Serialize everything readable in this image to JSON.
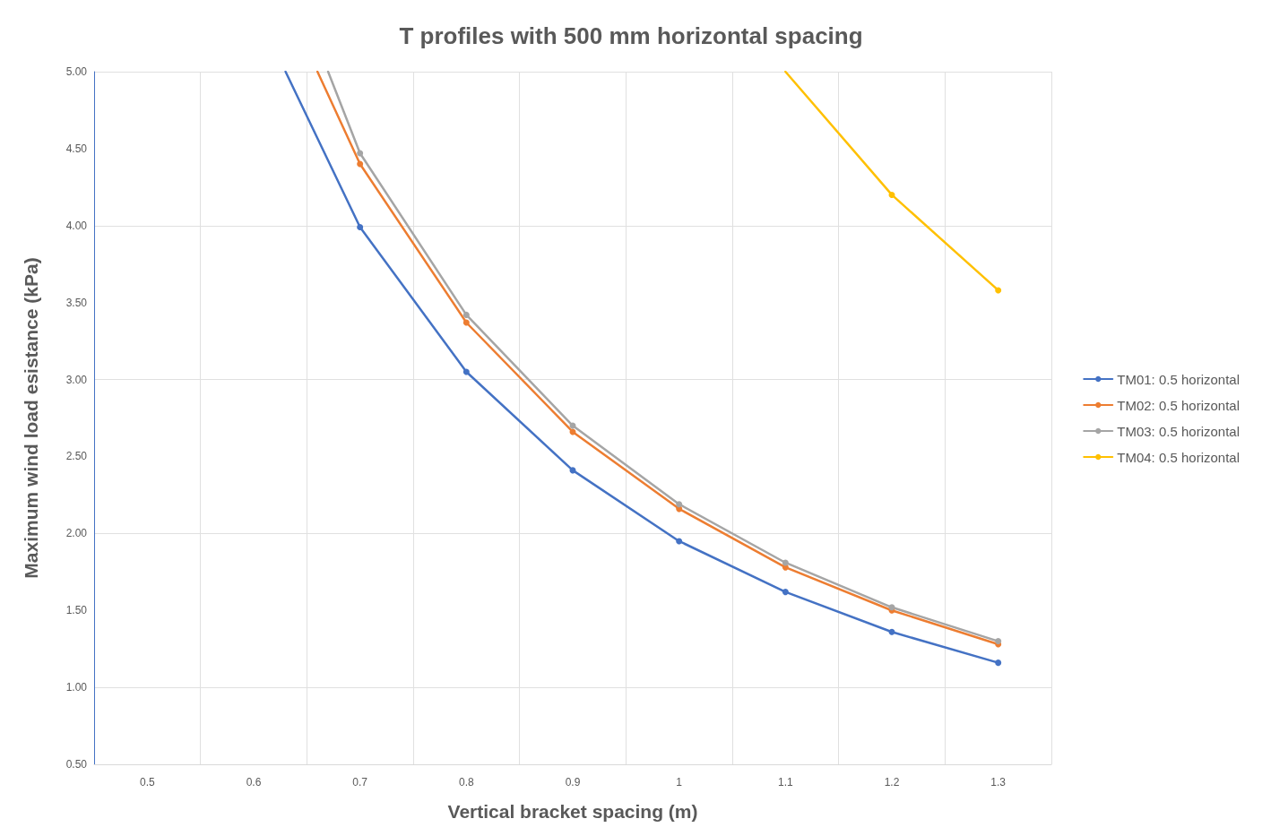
{
  "chart_data": {
    "type": "line",
    "title": "T profiles with 500 mm horizontal spacing",
    "xlabel": "Vertical bracket spacing (m)",
    "ylabel": "Maximum wind load esistance (kPa)",
    "xlim": [
      0.45,
      1.35
    ],
    "xticks": [
      {
        "value": 0.45,
        "label": null
      },
      {
        "value": 0.5,
        "label": "0.5"
      },
      {
        "value": 0.55,
        "label": null
      },
      {
        "value": 0.6,
        "label": "0.6"
      },
      {
        "value": 0.65,
        "label": null
      },
      {
        "value": 0.7,
        "label": "0.7"
      },
      {
        "value": 0.75,
        "label": null
      },
      {
        "value": 0.8,
        "label": "0.8"
      },
      {
        "value": 0.85,
        "label": null
      },
      {
        "value": 0.9,
        "label": "0.9"
      },
      {
        "value": 0.95,
        "label": null
      },
      {
        "value": 1,
        "label": "1"
      },
      {
        "value": 1.05,
        "label": null
      },
      {
        "value": 1.1,
        "label": "1.1"
      },
      {
        "value": 1.15,
        "label": null
      },
      {
        "value": 1.2,
        "label": "1.2"
      },
      {
        "value": 1.25,
        "label": null
      },
      {
        "value": 1.3,
        "label": "1.3"
      },
      {
        "value": 1.35,
        "label": null
      }
    ],
    "ylim": [
      0.5,
      5
    ],
    "yticks": [
      {
        "value": 0.5,
        "label": "0.50"
      },
      {
        "value": 1,
        "label": "1.00"
      },
      {
        "value": 1.5,
        "label": "1.50"
      },
      {
        "value": 2,
        "label": "2.00"
      },
      {
        "value": 2.5,
        "label": "2.50"
      },
      {
        "value": 3,
        "label": "3.00"
      },
      {
        "value": 3.5,
        "label": "3.50"
      },
      {
        "value": 4,
        "label": "4.00"
      },
      {
        "value": 4.5,
        "label": "4.50"
      },
      {
        "value": 5,
        "label": "5.00"
      }
    ],
    "grid": true,
    "legend": "right",
    "marker": "circle",
    "line_style": "solid",
    "series": [
      {
        "name": "TM01: 0.5 horizontal",
        "color": "#4472c4",
        "x": [
          0.63,
          0.7,
          0.8,
          0.9,
          1,
          1.1,
          1.2,
          1.3
        ],
        "values": [
          5,
          3.99,
          3.05,
          2.41,
          1.95,
          1.62,
          1.36,
          1.16
        ]
      },
      {
        "name": "TM02: 0.5 horizontal",
        "color": "#ed7d31",
        "x": [
          0.66,
          0.7,
          0.8,
          0.9,
          1,
          1.1,
          1.2,
          1.3
        ],
        "values": [
          5,
          4.4,
          3.37,
          2.66,
          2.16,
          1.78,
          1.5,
          1.28
        ]
      },
      {
        "name": "TM03: 0.5 horizontal",
        "color": "#a5a5a5",
        "x": [
          0.67,
          0.7,
          0.8,
          0.9,
          1,
          1.1,
          1.2,
          1.3
        ],
        "values": [
          5,
          4.47,
          3.42,
          2.7,
          2.19,
          1.81,
          1.52,
          1.3
        ]
      },
      {
        "name": "TM04: 0.5 horizontal",
        "color": "#ffc000",
        "x": [
          1.1,
          1.2,
          1.3
        ],
        "values": [
          5,
          4.2,
          3.58
        ]
      }
    ]
  }
}
